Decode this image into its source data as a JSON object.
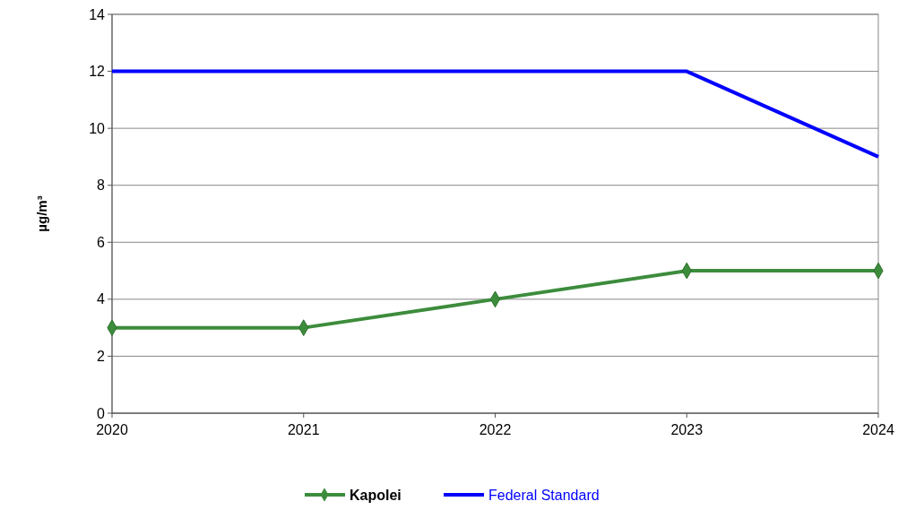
{
  "chart_data": {
    "type": "line",
    "ylabel": "µg/m³",
    "x": [
      2020,
      2021,
      2022,
      2023,
      2024
    ],
    "xlim": [
      2020,
      2024
    ],
    "xticks": [
      2020,
      2021,
      2022,
      2023,
      2024
    ],
    "ylim": [
      0,
      14
    ],
    "yticks": [
      0,
      2,
      4,
      6,
      8,
      10,
      12,
      14
    ],
    "grid": "y",
    "legend": "bottom",
    "series": [
      {
        "name": "Kapolei",
        "color": "#3c8c3c",
        "values": [
          3,
          3,
          4,
          5,
          5
        ],
        "marker": "diamond"
      },
      {
        "name": "Federal Standard",
        "color": "#0000ff",
        "values": [
          12,
          12,
          12,
          12,
          9
        ],
        "marker": "none"
      }
    ]
  }
}
